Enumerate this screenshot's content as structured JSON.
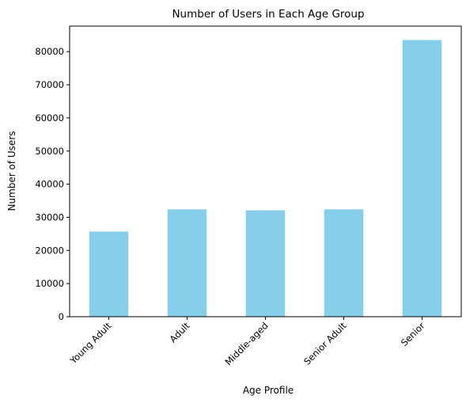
{
  "chart_data": {
    "type": "bar",
    "title": "Number of Users in Each Age Group",
    "xlabel": "Age Profile",
    "ylabel": "Number of Users",
    "categories": [
      "Young Adult",
      "Adult",
      "Middle-aged",
      "Senior Adult",
      "Senior"
    ],
    "values": [
      25700,
      32400,
      32100,
      32400,
      83500
    ],
    "ylim": [
      0,
      87700
    ],
    "yticks": [
      0,
      10000,
      20000,
      30000,
      40000,
      50000,
      60000,
      70000,
      80000
    ],
    "ytick_labels": [
      "0",
      "10000",
      "20000",
      "30000",
      "40000",
      "50000",
      "60000",
      "70000",
      "80000"
    ],
    "bar_color": "#87ceeb",
    "grid": false,
    "legend": "none"
  }
}
